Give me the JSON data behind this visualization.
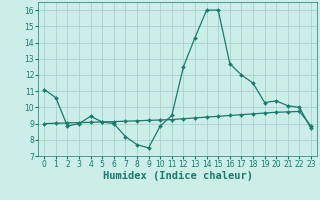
{
  "line1_x": [
    0,
    1,
    2,
    3,
    4,
    5,
    6,
    7,
    8,
    9,
    10,
    11,
    12,
    13,
    14,
    15,
    16,
    17,
    18,
    19,
    20,
    21,
    22,
    23
  ],
  "line1_y": [
    11.1,
    10.6,
    8.85,
    9.0,
    9.45,
    9.1,
    9.0,
    8.2,
    7.7,
    7.5,
    8.85,
    9.5,
    12.5,
    14.3,
    16.0,
    16.0,
    12.7,
    12.0,
    11.5,
    10.3,
    10.4,
    10.1,
    10.0,
    8.7
  ],
  "line2_x": [
    0,
    1,
    2,
    3,
    4,
    5,
    6,
    7,
    8,
    9,
    10,
    11,
    12,
    13,
    14,
    15,
    16,
    17,
    18,
    19,
    20,
    21,
    22,
    23
  ],
  "line2_y": [
    9.0,
    9.02,
    9.04,
    9.06,
    9.08,
    9.1,
    9.12,
    9.15,
    9.17,
    9.2,
    9.22,
    9.25,
    9.3,
    9.35,
    9.4,
    9.45,
    9.5,
    9.55,
    9.6,
    9.65,
    9.7,
    9.72,
    9.75,
    8.85
  ],
  "line_color": "#1a7a6e",
  "marker": "D",
  "marker_size": 2.0,
  "linewidth": 0.9,
  "bg_color": "#cceee8",
  "grid_color": "#a0ccc6",
  "xlabel": "Humidex (Indice chaleur)",
  "xlim": [
    -0.5,
    23.5
  ],
  "ylim": [
    7,
    16.5
  ],
  "xticks": [
    0,
    1,
    2,
    3,
    4,
    5,
    6,
    7,
    8,
    9,
    10,
    11,
    12,
    13,
    14,
    15,
    16,
    17,
    18,
    19,
    20,
    21,
    22,
    23
  ],
  "yticks": [
    7,
    8,
    9,
    10,
    11,
    12,
    13,
    14,
    15,
    16
  ],
  "tick_fontsize": 5.5,
  "xlabel_fontsize": 7.5
}
